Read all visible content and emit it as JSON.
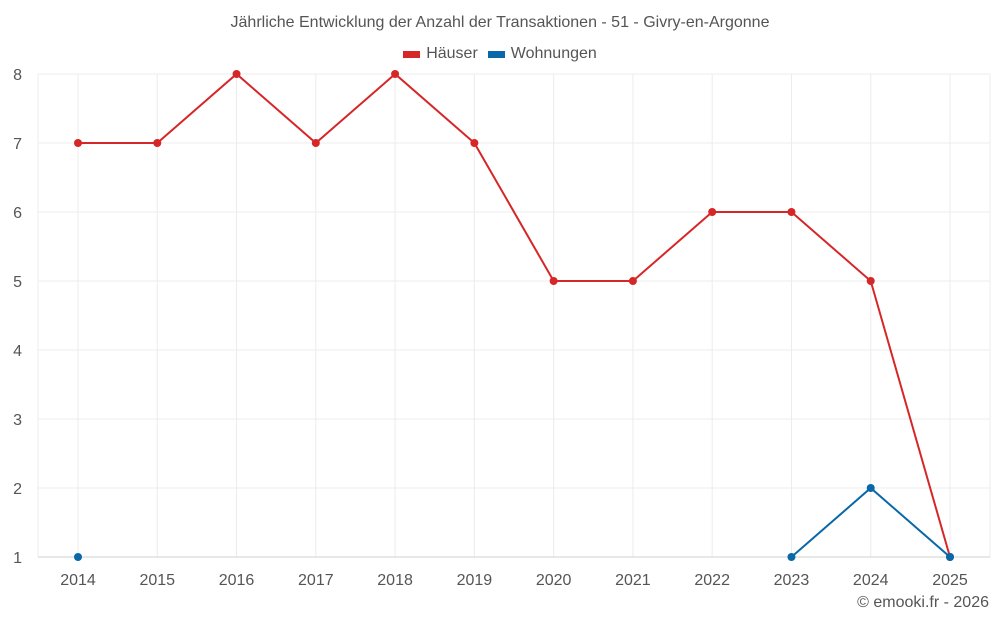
{
  "chart": {
    "title": "Jährliche Entwicklung der Anzahl der Transaktionen - 51 - Givry-en-Argonne",
    "credit": "© emooki.fr - 2026",
    "legend": [
      {
        "label": "Häuser",
        "color": "#d62728"
      },
      {
        "label": "Wohnungen",
        "color": "#0868a8"
      }
    ]
  },
  "chart_data": {
    "type": "line",
    "title": "Jährliche Entwicklung der Anzahl der Transaktionen - 51 - Givry-en-Argonne",
    "xlabel": "",
    "ylabel": "",
    "categories": [
      "2014",
      "2015",
      "2016",
      "2017",
      "2018",
      "2019",
      "2020",
      "2021",
      "2022",
      "2023",
      "2024",
      "2025"
    ],
    "yticks": [
      1,
      2,
      3,
      4,
      5,
      6,
      7,
      8
    ],
    "ylim": [
      1,
      8
    ],
    "grid": true,
    "legend_position": "top",
    "series": [
      {
        "name": "Häuser",
        "color": "#d62728",
        "values": [
          7,
          7,
          8,
          7,
          8,
          7,
          5,
          5,
          6,
          6,
          5,
          1
        ]
      },
      {
        "name": "Wohnungen",
        "color": "#0868a8",
        "values": [
          1,
          null,
          null,
          null,
          null,
          null,
          null,
          null,
          null,
          1,
          2,
          1
        ]
      }
    ]
  }
}
